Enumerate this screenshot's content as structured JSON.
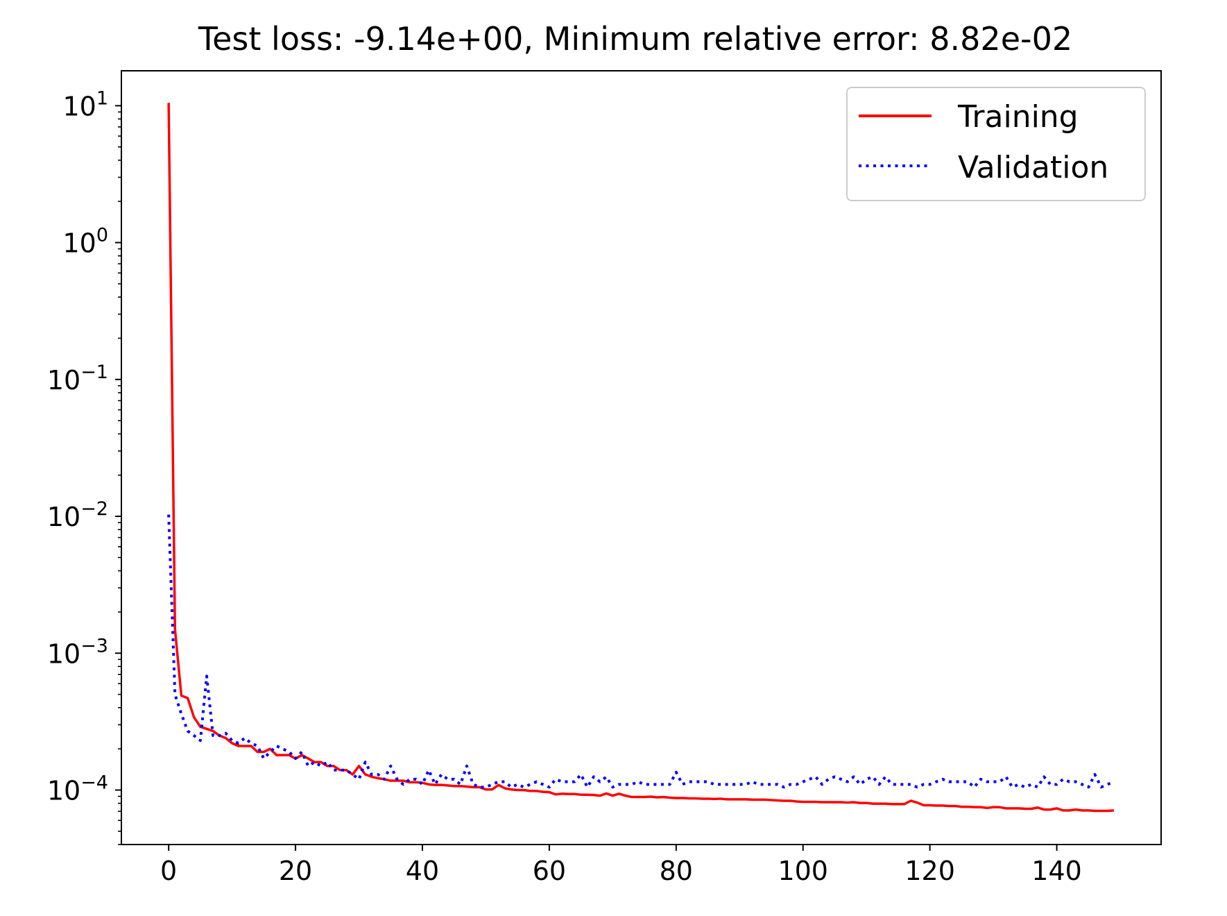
{
  "chart_data": {
    "type": "line",
    "title": "Test loss: -9.14e+00, Minimum relative error: 8.82e-02",
    "xlabel": "",
    "ylabel": "",
    "xlim": [
      -7.45,
      156.45
    ],
    "ylim": [
      4e-05,
      18
    ],
    "yscale": "log",
    "grid": false,
    "legend_position": "top-right",
    "x_ticks": [
      0,
      20,
      40,
      60,
      80,
      100,
      120,
      140
    ],
    "x_tick_labels": [
      "0",
      "20",
      "40",
      "60",
      "80",
      "100",
      "120",
      "140"
    ],
    "y_ticks": [
      0.0001,
      0.001,
      0.01,
      0.1,
      1,
      10
    ],
    "y_tick_labels": [
      {
        "base": "10",
        "exp": "−4"
      },
      {
        "base": "10",
        "exp": "−3"
      },
      {
        "base": "10",
        "exp": "−2"
      },
      {
        "base": "10",
        "exp": "−1"
      },
      {
        "base": "10",
        "exp": "0"
      },
      {
        "base": "10",
        "exp": "1"
      }
    ],
    "series": [
      {
        "name": "Training",
        "color": "#ff0000",
        "style": "solid",
        "x_start": 0,
        "values": [
          10.5,
          0.0015,
          0.00049,
          0.00047,
          0.00034,
          0.00029,
          0.00028,
          0.00027,
          0.00025,
          0.00024,
          0.00022,
          0.00021,
          0.00021,
          0.00021,
          0.00019,
          0.00019,
          0.0002,
          0.00018,
          0.00018,
          0.00018,
          0.00017,
          0.00018,
          0.00017,
          0.00016,
          0.00016,
          0.00015,
          0.00015,
          0.00014,
          0.00014,
          0.00013,
          0.00015,
          0.00013,
          0.000125,
          0.000122,
          0.00012,
          0.000117,
          0.000117,
          0.000117,
          0.000114,
          0.000114,
          0.000113,
          0.00011,
          0.000109,
          0.000109,
          0.000108,
          0.000107,
          0.000107,
          0.000106,
          0.000105,
          0.000105,
          0.000101,
          0.000101,
          0.000109,
          0.000103,
          0.000101,
          0.0001,
          0.0001,
          9.85e-05,
          9.85e-05,
          9.7e-05,
          9.65e-05,
          9.3e-05,
          9.4e-05,
          9.35e-05,
          9.35e-05,
          9.25e-05,
          9.25e-05,
          9.2e-05,
          9.1e-05,
          9.45e-05,
          9.1e-05,
          9.4e-05,
          9.1e-05,
          8.9e-05,
          8.9e-05,
          8.9e-05,
          8.95e-05,
          8.85e-05,
          8.9e-05,
          8.8e-05,
          8.75e-05,
          8.75e-05,
          8.7e-05,
          8.7e-05,
          8.65e-05,
          8.65e-05,
          8.6e-05,
          8.65e-05,
          8.55e-05,
          8.55e-05,
          8.55e-05,
          8.55e-05,
          8.5e-05,
          8.5e-05,
          8.5e-05,
          8.45e-05,
          8.4e-05,
          8.35e-05,
          8.35e-05,
          8.25e-05,
          8.2e-05,
          8.2e-05,
          8.2e-05,
          8.15e-05,
          8.15e-05,
          8.15e-05,
          8.15e-05,
          8.1e-05,
          8.15e-05,
          8.05e-05,
          8.05e-05,
          7.95e-05,
          7.95e-05,
          7.95e-05,
          7.9e-05,
          7.9e-05,
          7.9e-05,
          8.35e-05,
          8.1e-05,
          7.75e-05,
          7.75e-05,
          7.7e-05,
          7.7e-05,
          7.65e-05,
          7.65e-05,
          7.55e-05,
          7.55e-05,
          7.5e-05,
          7.5e-05,
          7.4e-05,
          7.5e-05,
          7.5e-05,
          7.35e-05,
          7.35e-05,
          7.35e-05,
          7.3e-05,
          7.3e-05,
          7.45e-05,
          7.2e-05,
          7.2e-05,
          7.35e-05,
          7.1e-05,
          7.1e-05,
          7.2e-05,
          7.1e-05,
          7.1e-05,
          7.05e-05,
          7.05e-05,
          7.05e-05,
          7.1e-05
        ]
      },
      {
        "name": "Validation",
        "color": "#0000ff",
        "style": "dotted",
        "x_start": 0,
        "values": [
          0.0103,
          0.0005,
          0.00036,
          0.00027,
          0.00025,
          0.00023,
          0.00068,
          0.00025,
          0.00025,
          0.00026,
          0.00023,
          0.00022,
          0.00024,
          0.00022,
          0.00021,
          0.00017,
          0.00019,
          0.00021,
          0.0002,
          0.00019,
          0.00017,
          0.00019,
          0.00015,
          0.00016,
          0.00015,
          0.00016,
          0.00014,
          0.00014,
          0.00014,
          0.00013,
          0.00012,
          0.00016,
          0.00013,
          0.00013,
          0.00012,
          0.00015,
          0.00012,
          0.00011,
          0.00012,
          0.00012,
          0.00011,
          0.00014,
          0.00011,
          0.00013,
          0.00012,
          0.00012,
          0.00011,
          0.00015,
          0.00011,
          0.000105,
          0.000105,
          0.00011,
          0.000115,
          0.000115,
          0.000105,
          0.00011,
          0.000105,
          0.00011,
          0.000115,
          0.00011,
          0.000105,
          0.00012,
          0.000115,
          0.000115,
          0.000115,
          0.00013,
          0.000105,
          0.000125,
          0.000115,
          0.000125,
          0.000105,
          0.00011,
          0.00011,
          0.00011,
          0.000115,
          0.00011,
          0.00011,
          0.00011,
          0.00011,
          0.00011,
          0.000135,
          0.00011,
          0.000115,
          0.000115,
          0.000115,
          0.000115,
          0.00011,
          0.00011,
          0.00011,
          0.00011,
          0.00011,
          0.00011,
          0.000115,
          0.00011,
          0.00011,
          0.00011,
          0.00011,
          0.000105,
          0.00011,
          0.00011,
          0.000115,
          0.00012,
          0.000125,
          0.00011,
          0.00012,
          0.000125,
          0.00012,
          0.000115,
          0.000125,
          0.00011,
          0.00012,
          0.000125,
          0.00011,
          0.000125,
          0.00011,
          0.00011,
          0.00011,
          0.00011,
          0.000105,
          0.00011,
          0.00011,
          0.000115,
          0.00012,
          0.000115,
          0.000115,
          0.000115,
          0.000115,
          0.000105,
          0.00012,
          0.000115,
          0.000115,
          0.000115,
          0.000125,
          0.000105,
          0.00011,
          0.000105,
          0.00011,
          0.000105,
          0.000125,
          0.00011,
          0.00011,
          0.00012,
          0.000115,
          0.000115,
          0.00011,
          0.000105,
          0.00013,
          0.000105,
          0.00011,
          0.000115
        ]
      }
    ]
  }
}
